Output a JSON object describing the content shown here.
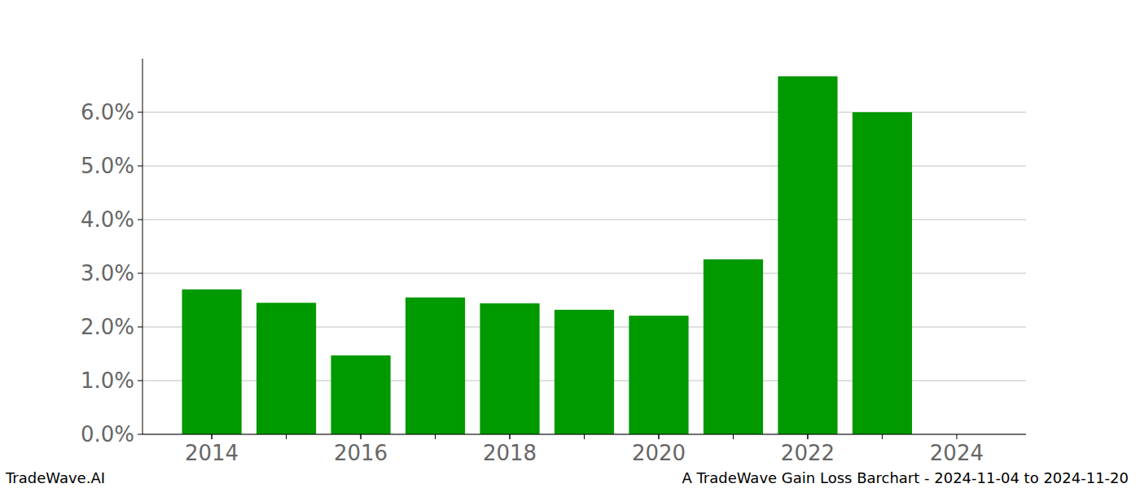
{
  "chart_data": {
    "type": "bar",
    "x": [
      2014,
      2015,
      2016,
      2017,
      2018,
      2019,
      2020,
      2021,
      2022,
      2023
    ],
    "values": [
      2.7,
      2.45,
      1.47,
      2.55,
      2.44,
      2.32,
      2.21,
      3.26,
      6.67,
      6.0
    ],
    "color": "#009900",
    "xlim": [
      2013.07,
      2024.93
    ],
    "xticks": [
      2014,
      2016,
      2018,
      2020,
      2022,
      2024
    ],
    "ylim": [
      0,
      7.0
    ],
    "yticks": [
      {
        "value": 0,
        "label": "0.0%"
      },
      {
        "value": 1,
        "label": "1.0%"
      },
      {
        "value": 2,
        "label": "2.0%"
      },
      {
        "value": 3,
        "label": "3.0%"
      },
      {
        "value": 4,
        "label": "4.0%"
      },
      {
        "value": 5,
        "label": "5.0%"
      },
      {
        "value": 6,
        "label": "6.0%"
      }
    ],
    "grid": true,
    "annotations": [
      "TradeWave.AI",
      "A TradeWave Gain Loss Barchart - 2024-11-04 to 2024-11-20"
    ]
  }
}
